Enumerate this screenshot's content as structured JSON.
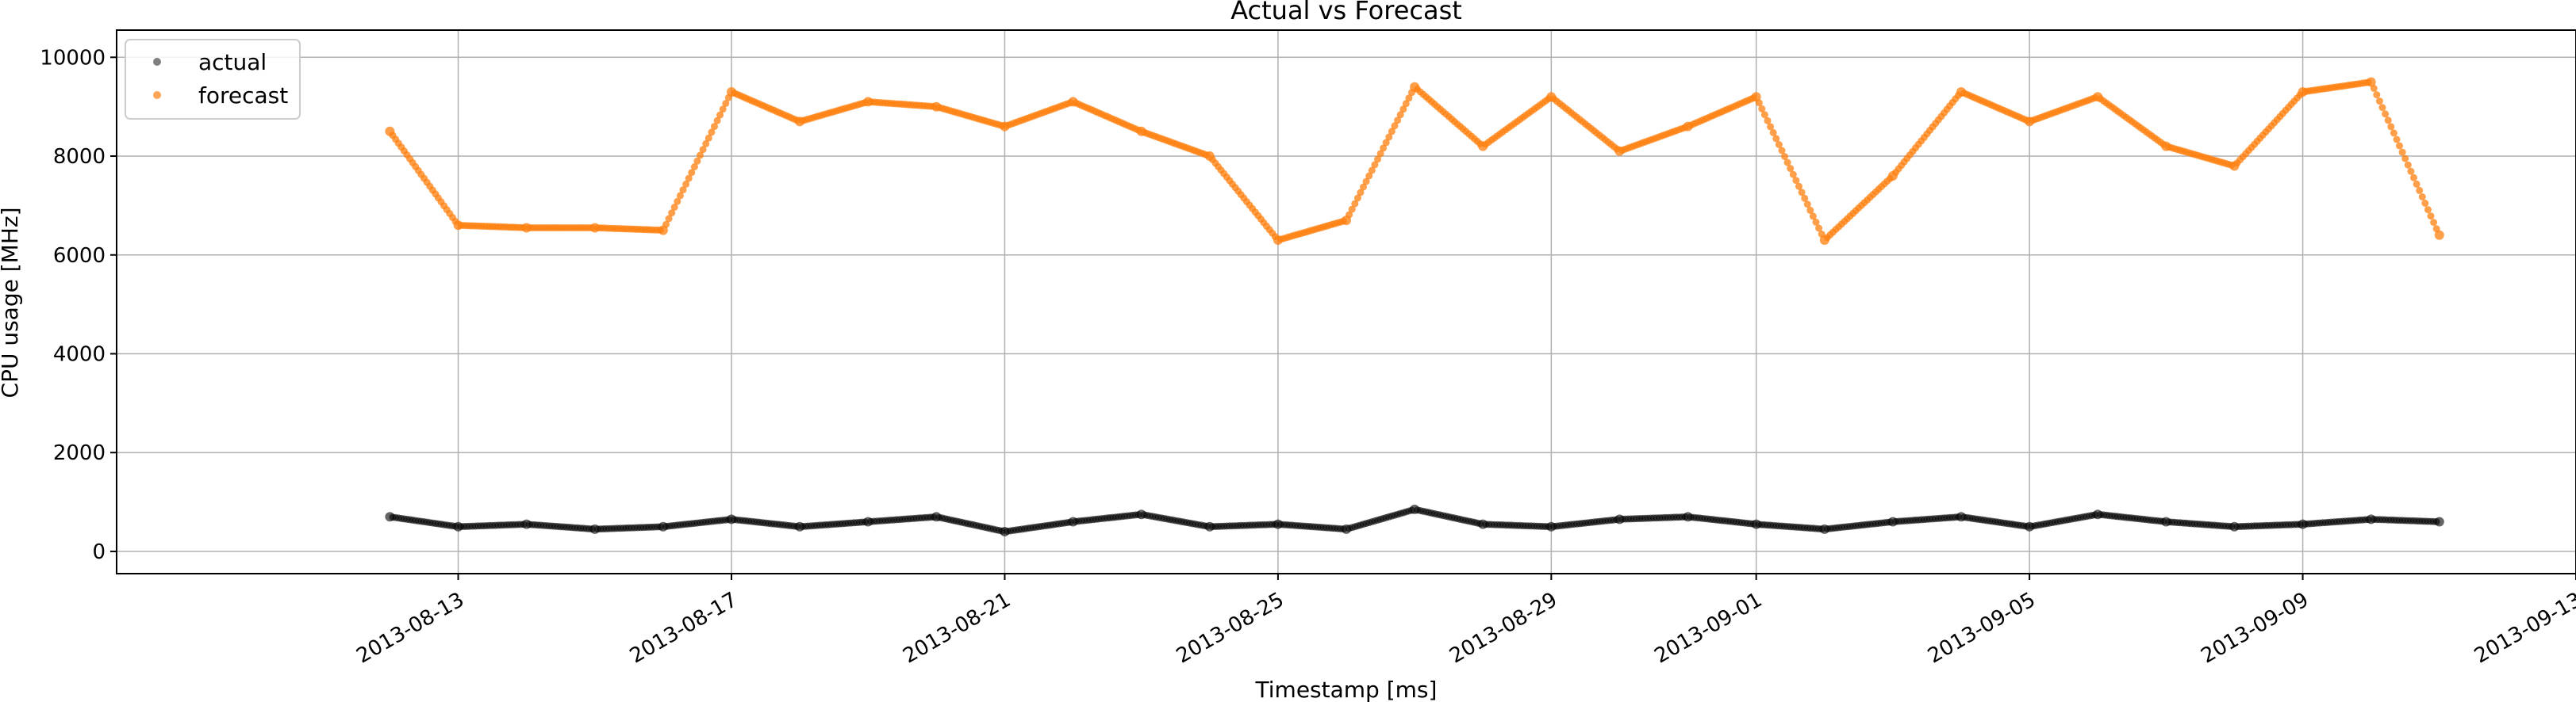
{
  "chart_data": {
    "type": "scatter",
    "title": "Actual vs Forecast",
    "xlabel": "Timestamp [ms]",
    "ylabel": "CPU usage [MHz]",
    "x_type": "date",
    "xlim": [
      "2013-08-08",
      "2013-09-13"
    ],
    "ylim": [
      -450,
      10550
    ],
    "grid": true,
    "legend_position": "top-left",
    "x_ticks": [
      "2013-08-13",
      "2013-08-17",
      "2013-08-21",
      "2013-08-25",
      "2013-08-29",
      "2013-09-01",
      "2013-09-05",
      "2013-09-09",
      "2013-09-13"
    ],
    "y_ticks": [
      0,
      2000,
      4000,
      6000,
      8000,
      10000
    ],
    "series": [
      {
        "name": "actual",
        "color": "#000000",
        "x": [
          "2013-08-12",
          "2013-08-13",
          "2013-08-14",
          "2013-08-15",
          "2013-08-16",
          "2013-08-17",
          "2013-08-18",
          "2013-08-19",
          "2013-08-20",
          "2013-08-21",
          "2013-08-22",
          "2013-08-23",
          "2013-08-24",
          "2013-08-25",
          "2013-08-26",
          "2013-08-27",
          "2013-08-28",
          "2013-08-29",
          "2013-08-30",
          "2013-08-31",
          "2013-09-01",
          "2013-09-02",
          "2013-09-03",
          "2013-09-04",
          "2013-09-05",
          "2013-09-06",
          "2013-09-07",
          "2013-09-08",
          "2013-09-09",
          "2013-09-10",
          "2013-09-11"
        ],
        "values": [
          700,
          500,
          550,
          450,
          500,
          650,
          500,
          600,
          700,
          400,
          600,
          750,
          500,
          550,
          450,
          850,
          550,
          500,
          650,
          700,
          550,
          450,
          600,
          700,
          500,
          750,
          600,
          500,
          550,
          650,
          600
        ]
      },
      {
        "name": "forecast",
        "color": "#ff7f0e",
        "x": [
          "2013-08-12",
          "2013-08-13",
          "2013-08-14",
          "2013-08-15",
          "2013-08-16",
          "2013-08-17",
          "2013-08-18",
          "2013-08-19",
          "2013-08-20",
          "2013-08-21",
          "2013-08-22",
          "2013-08-23",
          "2013-08-24",
          "2013-08-25",
          "2013-08-26",
          "2013-08-27",
          "2013-08-28",
          "2013-08-29",
          "2013-08-30",
          "2013-08-31",
          "2013-09-01",
          "2013-09-02",
          "2013-09-03",
          "2013-09-04",
          "2013-09-05",
          "2013-09-06",
          "2013-09-07",
          "2013-09-08",
          "2013-09-09",
          "2013-09-10",
          "2013-09-11"
        ],
        "values": [
          8500,
          6600,
          6550,
          6550,
          6500,
          9300,
          8700,
          9100,
          9000,
          8600,
          9100,
          8500,
          8000,
          6300,
          6700,
          9400,
          8200,
          9200,
          8100,
          8600,
          9200,
          6300,
          7600,
          9300,
          8700,
          9200,
          8200,
          7800,
          9300,
          9500,
          6400
        ]
      }
    ]
  }
}
